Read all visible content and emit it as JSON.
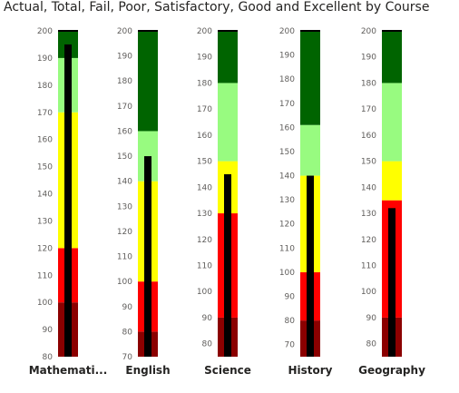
{
  "chart_data": {
    "type": "bullet",
    "title": "Actual, Total, Fail, Poor, Satisfactory, Good and Excellent by Course",
    "band_names": [
      "Fail",
      "Poor",
      "Satisfactory",
      "Good",
      "Excellent"
    ],
    "colors": {
      "Fail": "#8b0000",
      "Poor": "#ff0000",
      "Satisfactory": "#ffff00",
      "Good": "#98fb80",
      "Excellent": "#006400",
      "Actual": "#000000"
    },
    "courses": [
      {
        "name": "Mathemati...",
        "axis": [
          80,
          200
        ],
        "ticks": [
          80,
          90,
          100,
          110,
          120,
          130,
          140,
          150,
          160,
          170,
          180,
          190,
          200
        ],
        "bands": [
          100,
          120,
          170,
          190,
          200
        ],
        "actual": 195,
        "total": 200
      },
      {
        "name": "English",
        "axis": [
          70,
          200
        ],
        "ticks": [
          70,
          80,
          90,
          100,
          110,
          120,
          130,
          140,
          150,
          160,
          170,
          180,
          190,
          200
        ],
        "bands": [
          80,
          100,
          140,
          160,
          200
        ],
        "actual": 150,
        "total": 200
      },
      {
        "name": "Science",
        "axis": [
          75,
          200
        ],
        "ticks": [
          80,
          90,
          100,
          110,
          120,
          130,
          140,
          150,
          160,
          170,
          180,
          190,
          200
        ],
        "bands": [
          90,
          130,
          150,
          180,
          200
        ],
        "actual": 145,
        "total": 200
      },
      {
        "name": "History",
        "axis": [
          65,
          200
        ],
        "ticks": [
          70,
          80,
          90,
          100,
          110,
          120,
          130,
          140,
          150,
          160,
          170,
          180,
          190,
          200
        ],
        "bands": [
          80,
          100,
          140,
          161,
          200
        ],
        "actual": 140,
        "total": 200
      },
      {
        "name": "Geography",
        "axis": [
          75,
          200
        ],
        "ticks": [
          80,
          90,
          100,
          110,
          120,
          130,
          140,
          150,
          160,
          170,
          180,
          190,
          200
        ],
        "bands": [
          90,
          135,
          150,
          180,
          200
        ],
        "actual": 132,
        "total": 200
      }
    ]
  }
}
